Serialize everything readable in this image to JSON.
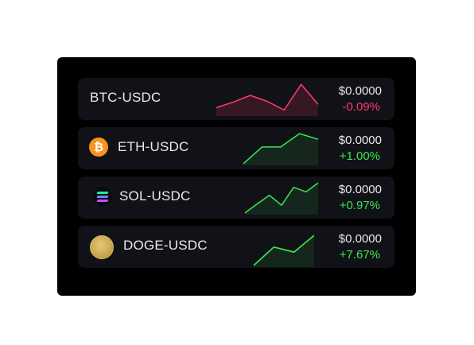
{
  "rows": [
    {
      "pair": "BTC-USDC",
      "price": "$0.0000",
      "change": "-0.09%",
      "trend": "down",
      "sparkline": [
        0.25,
        0.42,
        0.62,
        0.44,
        0.18,
        0.95,
        0.35
      ]
    },
    {
      "pair": "ETH-USDC",
      "price": "$0.0000",
      "change": "+1.00%",
      "trend": "up",
      "coin_icon": "bitcoin-icon",
      "coin_symbol": "₿",
      "sparkline": [
        0.05,
        0.55,
        0.55,
        0.95,
        0.78
      ]
    },
    {
      "pair": "SOL-USDC",
      "price": "$0.0000",
      "change": "+0.97%",
      "trend": "up",
      "coin_icon": "solana-icon",
      "sparkline": [
        0.05,
        0.32,
        0.58,
        0.28,
        0.82,
        0.68,
        0.95
      ]
    },
    {
      "pair": "DOGE-USDC",
      "price": "$0.0000",
      "change": "+7.67%",
      "trend": "up",
      "coin_icon": "doge-icon",
      "sparkline": [
        0.05,
        0.6,
        0.45,
        0.95
      ]
    }
  ],
  "colors": {
    "negative": "#ff3b66",
    "positive": "#39e84a",
    "card": "#111118",
    "panel": "#000000"
  }
}
